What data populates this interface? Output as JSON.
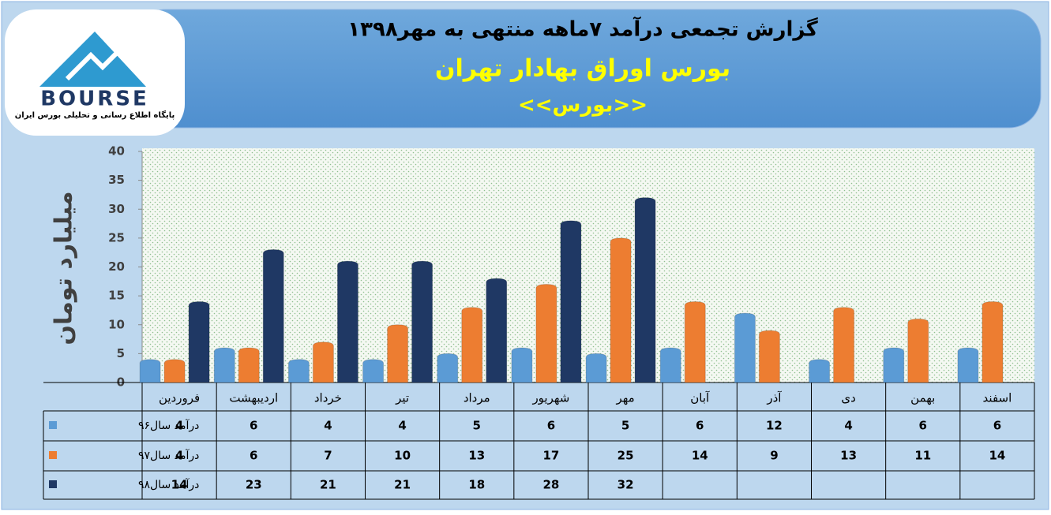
{
  "logo": {
    "name": "BOURSE",
    "tagline": "پایگاه اطلاع رسانی و تحلیلی بورس ایران"
  },
  "chart_data": {
    "type": "bar",
    "title": "گزارش تجمعی درآمد ۷ماهه منتهی به مهر۱۳۹۸",
    "subtitle": "بورس اوراق بهادار تهران",
    "subtitle2": "<<بورس>>",
    "y_label": "میلیارد تومان",
    "categories": [
      "فروردین",
      "اردیبهشت",
      "خرداد",
      "تیر",
      "مرداد",
      "شهریور",
      "مهر",
      "آبان",
      "آذر",
      "دی",
      "بهمن",
      "اسفند"
    ],
    "series": [
      {
        "name": "درآمد سال۹۶",
        "color": "#5b9bd5",
        "values": [
          4,
          6,
          4,
          4,
          5,
          6,
          5,
          6,
          12,
          4,
          6,
          6
        ]
      },
      {
        "name": "درآمد سال۹۷",
        "color": "#ed7d31",
        "values": [
          4,
          6,
          7,
          10,
          13,
          17,
          25,
          14,
          9,
          13,
          11,
          14
        ]
      },
      {
        "name": "درآمد سال۹۸",
        "color": "#1f3864",
        "values": [
          14,
          23,
          21,
          21,
          18,
          28,
          32,
          null,
          null,
          null,
          null,
          null
        ]
      }
    ],
    "ylim": [
      0,
      40
    ],
    "yticks": [
      0,
      5,
      10,
      15,
      20,
      25,
      30,
      35,
      40
    ],
    "grid": false
  }
}
